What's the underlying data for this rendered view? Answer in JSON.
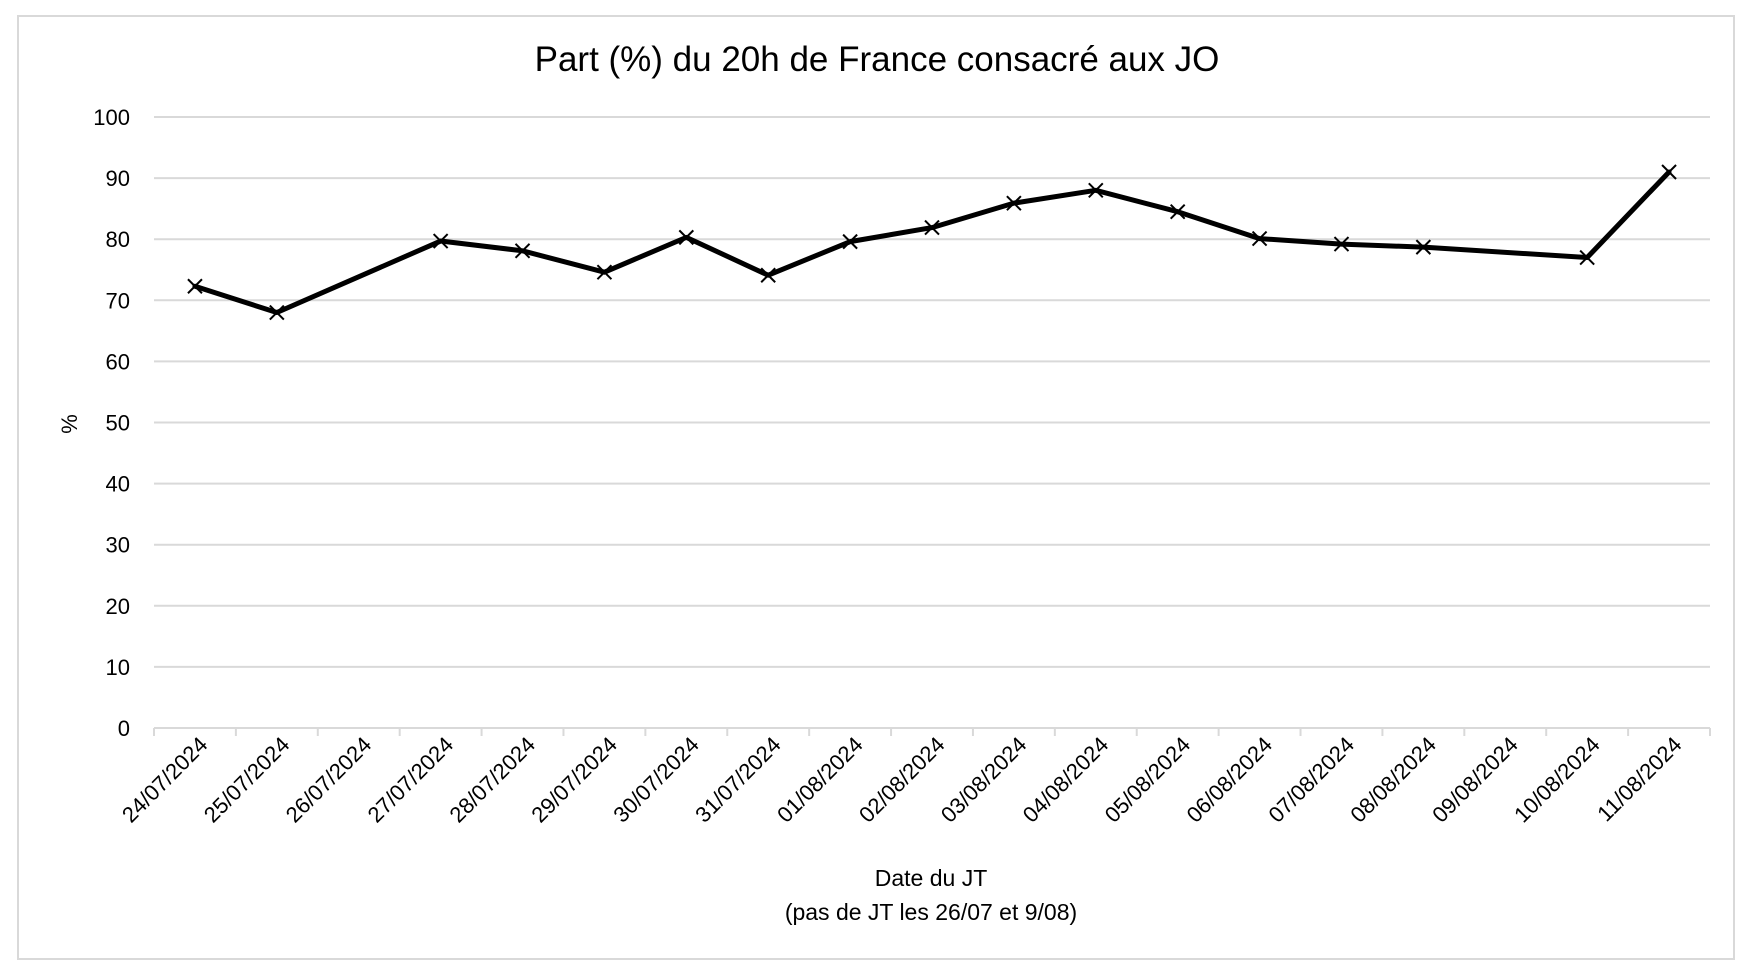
{
  "chart_data": {
    "type": "line",
    "title": "Part (%) du 20h de France consacré aux JO",
    "xlabel": "Date du JT",
    "xlabel_note": "(pas de JT les 26/07 et 9/08)",
    "ylabel": "%",
    "ylim": [
      0,
      100
    ],
    "yticks": [
      0,
      10,
      20,
      30,
      40,
      50,
      60,
      70,
      80,
      90,
      100
    ],
    "grid": true,
    "legend": "none",
    "marker": "x",
    "line_color": "#000000",
    "categories": [
      "24/07/2024",
      "25/07/2024",
      "26/07/2024",
      "27/07/2024",
      "28/07/2024",
      "29/07/2024",
      "30/07/2024",
      "31/07/2024",
      "01/08/2024",
      "02/08/2024",
      "03/08/2024",
      "04/08/2024",
      "05/08/2024",
      "06/08/2024",
      "07/08/2024",
      "08/08/2024",
      "09/08/2024",
      "10/08/2024",
      "11/08/2024"
    ],
    "values": [
      72.3,
      68.0,
      null,
      79.7,
      78.1,
      74.6,
      80.3,
      74.1,
      79.6,
      81.9,
      85.9,
      88.0,
      84.5,
      80.1,
      79.2,
      78.7,
      null,
      77.0,
      91.0
    ]
  }
}
